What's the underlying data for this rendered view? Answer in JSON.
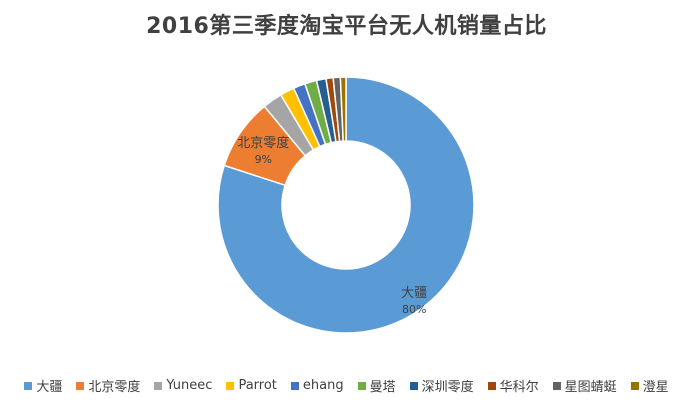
{
  "chart_data": {
    "type": "pie",
    "title": "2016第三季度淘宝平台无人机销量占比",
    "donut": true,
    "categories": [
      "大疆",
      "北京零度",
      "Yuneec",
      "Parrot",
      "ehang",
      "曼塔",
      "深圳零度",
      "华科尔",
      "星图蜻蜓",
      "澄星"
    ],
    "values": [
      80,
      9,
      2.5,
      1.8,
      1.5,
      1.5,
      1.2,
      0.9,
      0.9,
      0.7
    ],
    "colors": [
      "#5b9bd5",
      "#ed7d31",
      "#a5a5a5",
      "#ffc000",
      "#4472c4",
      "#70ad47",
      "#255e91",
      "#9e480e",
      "#636363",
      "#997300"
    ],
    "data_labels": [
      {
        "category": "大疆",
        "label": "80%"
      },
      {
        "category": "北京零度",
        "label": "9%"
      }
    ],
    "legend_position": "bottom"
  }
}
